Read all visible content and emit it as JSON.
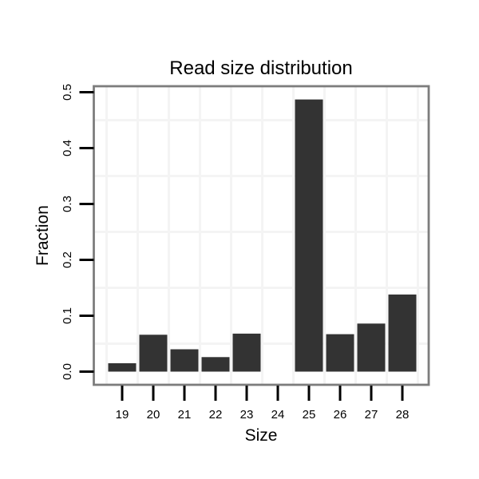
{
  "chart_data": {
    "type": "bar",
    "title": "Read size distribution",
    "xlabel": "Size",
    "ylabel": "Fraction",
    "categories": [
      "19",
      "20",
      "21",
      "22",
      "23",
      "24",
      "25",
      "26",
      "27",
      "28"
    ],
    "values": [
      0.015,
      0.066,
      0.04,
      0.026,
      0.068,
      0.0,
      0.487,
      0.067,
      0.086,
      0.138
    ],
    "ylim": [
      0.0,
      0.5
    ],
    "yticks": [
      0.0,
      0.1,
      0.2,
      0.3,
      0.4,
      0.5
    ],
    "ytick_labels": [
      "0.0",
      "0.1",
      "0.2",
      "0.3",
      "0.4",
      "0.5"
    ],
    "grid": "minor gridlines only (0.05 steps horizontal, category boundaries vertical)",
    "legend_position": "none",
    "bar_color": "#333333",
    "colors": {
      "bar": "#333333",
      "panel_border": "#7d7d7d",
      "grid": "#f4f4f4",
      "tick": "#000000",
      "text": "#000000",
      "background": "#ffffff"
    }
  }
}
